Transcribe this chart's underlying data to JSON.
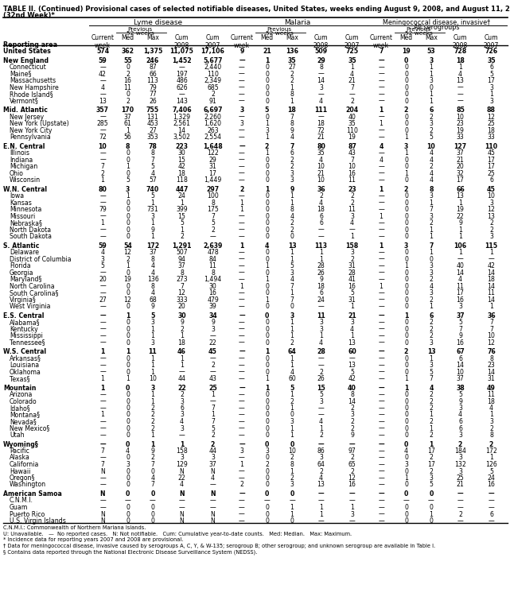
{
  "title_line1": "TABLE II. (Continued) Provisional cases of selected notifiable diseases, United States, weeks ending August 9, 2008, and August 11, 2007",
  "title_line2": "(32nd Week)*",
  "rows": [
    [
      "United States",
      "574",
      "362",
      "1,375",
      "11,075",
      "17,106",
      "9",
      "21",
      "136",
      "509",
      "725",
      "7",
      "19",
      "53",
      "728",
      "726"
    ],
    [
      "New England",
      "59",
      "55",
      "246",
      "1,452",
      "5,677",
      "—",
      "1",
      "35",
      "29",
      "35",
      "—",
      "0",
      "3",
      "18",
      "35"
    ],
    [
      "Connecticut",
      "—",
      "0",
      "87",
      "—",
      "2,440",
      "—",
      "0",
      "27",
      "8",
      "1",
      "—",
      "0",
      "1",
      "1",
      "6"
    ],
    [
      "Maine§",
      "42",
      "2",
      "66",
      "197",
      "110",
      "—",
      "0",
      "2",
      "—",
      "4",
      "—",
      "0",
      "1",
      "4",
      "5"
    ],
    [
      "Massachusetts",
      "—",
      "16",
      "113",
      "486",
      "2,349",
      "—",
      "0",
      "2",
      "14",
      "21",
      "—",
      "0",
      "3",
      "13",
      "17"
    ],
    [
      "New Hampshire",
      "4",
      "11",
      "79",
      "626",
      "685",
      "—",
      "0",
      "1",
      "3",
      "7",
      "—",
      "0",
      "0",
      "—",
      "3"
    ],
    [
      "Rhode Island§",
      "—",
      "0",
      "77",
      "—",
      "2",
      "—",
      "0",
      "8",
      "—",
      "—",
      "—",
      "0",
      "1",
      "—",
      "1"
    ],
    [
      "Vermont§",
      "13",
      "2",
      "26",
      "143",
      "91",
      "—",
      "0",
      "1",
      "4",
      "2",
      "—",
      "0",
      "1",
      "—",
      "3"
    ],
    [
      "Mid. Atlantic",
      "357",
      "170",
      "755",
      "7,406",
      "6,697",
      "3",
      "5",
      "18",
      "111",
      "204",
      "1",
      "2",
      "6",
      "85",
      "88"
    ],
    [
      "New Jersey",
      "—",
      "37",
      "131",
      "1,329",
      "2,260",
      "—",
      "0",
      "7",
      "—",
      "40",
      "—",
      "0",
      "2",
      "10",
      "12"
    ],
    [
      "New York (Upstate)",
      "285",
      "61",
      "453",
      "2,561",
      "1,620",
      "3",
      "1",
      "8",
      "18",
      "35",
      "1",
      "0",
      "3",
      "23",
      "25"
    ],
    [
      "New York City",
      "—",
      "1",
      "27",
      "14",
      "263",
      "—",
      "3",
      "9",
      "72",
      "110",
      "—",
      "0",
      "2",
      "19",
      "18"
    ],
    [
      "Pennsylvania",
      "72",
      "56",
      "353",
      "3,502",
      "2,554",
      "—",
      "1",
      "4",
      "21",
      "19",
      "—",
      "1",
      "5",
      "33",
      "33"
    ],
    [
      "E.N. Central",
      "10",
      "8",
      "78",
      "223",
      "1,648",
      "—",
      "2",
      "7",
      "80",
      "87",
      "4",
      "3",
      "10",
      "127",
      "110"
    ],
    [
      "Illinois",
      "—",
      "0",
      "8",
      "30",
      "122",
      "—",
      "1",
      "6",
      "35",
      "43",
      "—",
      "1",
      "4",
      "37",
      "45"
    ],
    [
      "Indiana",
      "—",
      "0",
      "7",
      "15",
      "29",
      "—",
      "0",
      "2",
      "4",
      "7",
      "4",
      "0",
      "4",
      "21",
      "17"
    ],
    [
      "Michigan",
      "7",
      "1",
      "5",
      "42",
      "31",
      "—",
      "0",
      "2",
      "10",
      "10",
      "—",
      "0",
      "2",
      "20",
      "17"
    ],
    [
      "Ohio",
      "2",
      "0",
      "4",
      "18",
      "17",
      "—",
      "0",
      "3",
      "21",
      "16",
      "—",
      "1",
      "4",
      "32",
      "25"
    ],
    [
      "Wisconsin",
      "1",
      "5",
      "57",
      "118",
      "1,449",
      "—",
      "0",
      "3",
      "10",
      "11",
      "—",
      "0",
      "4",
      "17",
      "6"
    ],
    [
      "W.N. Central",
      "80",
      "3",
      "740",
      "447",
      "297",
      "2",
      "1",
      "9",
      "36",
      "23",
      "1",
      "2",
      "8",
      "66",
      "45"
    ],
    [
      "Iowa",
      "—",
      "1",
      "5",
      "24",
      "100",
      "—",
      "0",
      "1",
      "2",
      "2",
      "—",
      "0",
      "3",
      "13",
      "10"
    ],
    [
      "Kansas",
      "—",
      "0",
      "1",
      "1",
      "8",
      "1",
      "0",
      "1",
      "4",
      "2",
      "—",
      "0",
      "1",
      "1",
      "3"
    ],
    [
      "Minnesota",
      "79",
      "0",
      "731",
      "399",
      "175",
      "1",
      "0",
      "8",
      "18",
      "11",
      "—",
      "0",
      "7",
      "19",
      "12"
    ],
    [
      "Missouri",
      "—",
      "0",
      "3",
      "15",
      "7",
      "—",
      "0",
      "4",
      "6",
      "3",
      "1",
      "0",
      "3",
      "22",
      "13"
    ],
    [
      "Nebraska§",
      "1",
      "0",
      "1",
      "5",
      "5",
      "—",
      "0",
      "2",
      "6",
      "4",
      "—",
      "0",
      "2",
      "9",
      "2"
    ],
    [
      "North Dakota",
      "—",
      "0",
      "9",
      "1",
      "2",
      "—",
      "0",
      "2",
      "—",
      "—",
      "—",
      "0",
      "1",
      "1",
      "2"
    ],
    [
      "South Dakota",
      "—",
      "0",
      "1",
      "2",
      "—",
      "—",
      "0",
      "0",
      "—",
      "1",
      "—",
      "0",
      "1",
      "1",
      "3"
    ],
    [
      "S. Atlantic",
      "59",
      "54",
      "172",
      "1,291",
      "2,639",
      "1",
      "4",
      "13",
      "113",
      "158",
      "1",
      "3",
      "7",
      "106",
      "115"
    ],
    [
      "Delaware",
      "4",
      "12",
      "37",
      "507",
      "478",
      "—",
      "0",
      "1",
      "1",
      "3",
      "—",
      "0",
      "1",
      "1",
      "1"
    ],
    [
      "District of Columbia",
      "3",
      "2",
      "8",
      "94",
      "84",
      "—",
      "0",
      "1",
      "1",
      "2",
      "—",
      "0",
      "0",
      "—",
      "—"
    ],
    [
      "Florida",
      "5",
      "1",
      "4",
      "37",
      "11",
      "—",
      "1",
      "5",
      "28",
      "31",
      "—",
      "1",
      "3",
      "40",
      "42"
    ],
    [
      "Georgia",
      "—",
      "0",
      "4",
      "8",
      "8",
      "—",
      "0",
      "3",
      "26",
      "28",
      "—",
      "0",
      "3",
      "14",
      "14"
    ],
    [
      "Maryland§",
      "20",
      "19",
      "136",
      "273",
      "1,494",
      "—",
      "1",
      "4",
      "9",
      "41",
      "—",
      "0",
      "2",
      "4",
      "18"
    ],
    [
      "North Carolina",
      "—",
      "0",
      "8",
      "7",
      "30",
      "1",
      "0",
      "7",
      "18",
      "16",
      "1",
      "0",
      "4",
      "11",
      "14"
    ],
    [
      "South Carolina§",
      "—",
      "0",
      "4",
      "12",
      "16",
      "—",
      "0",
      "1",
      "6",
      "5",
      "—",
      "0",
      "3",
      "17",
      "11"
    ],
    [
      "Virginia§",
      "27",
      "12",
      "68",
      "333",
      "479",
      "—",
      "1",
      "7",
      "24",
      "31",
      "—",
      "0",
      "2",
      "16",
      "14"
    ],
    [
      "West Virginia",
      "—",
      "0",
      "9",
      "20",
      "39",
      "—",
      "0",
      "0",
      "—",
      "1",
      "—",
      "0",
      "1",
      "3",
      "1"
    ],
    [
      "E.S. Central",
      "—",
      "1",
      "5",
      "30",
      "34",
      "—",
      "0",
      "3",
      "11",
      "21",
      "—",
      "1",
      "6",
      "37",
      "36"
    ],
    [
      "Alabama§",
      "—",
      "0",
      "3",
      "9",
      "9",
      "—",
      "0",
      "1",
      "3",
      "3",
      "—",
      "0",
      "2",
      "5",
      "7"
    ],
    [
      "Kentucky",
      "—",
      "0",
      "1",
      "2",
      "3",
      "—",
      "0",
      "1",
      "3",
      "4",
      "—",
      "0",
      "2",
      "7",
      "7"
    ],
    [
      "Mississippi",
      "—",
      "0",
      "1",
      "1",
      "—",
      "—",
      "0",
      "1",
      "1",
      "1",
      "—",
      "0",
      "2",
      "9",
      "10"
    ],
    [
      "Tennessee§",
      "—",
      "0",
      "3",
      "18",
      "22",
      "—",
      "0",
      "2",
      "4",
      "13",
      "—",
      "0",
      "3",
      "16",
      "12"
    ],
    [
      "W.S. Central",
      "1",
      "1",
      "11",
      "46",
      "45",
      "—",
      "1",
      "64",
      "28",
      "60",
      "—",
      "2",
      "13",
      "67",
      "76"
    ],
    [
      "Arkansas§",
      "—",
      "0",
      "1",
      "1",
      "—",
      "—",
      "0",
      "1",
      "—",
      "—",
      "—",
      "0",
      "1",
      "6",
      "8"
    ],
    [
      "Louisiana",
      "—",
      "0",
      "1",
      "1",
      "2",
      "—",
      "0",
      "1",
      "—",
      "13",
      "—",
      "0",
      "3",
      "14",
      "23"
    ],
    [
      "Oklahoma",
      "—",
      "0",
      "1",
      "—",
      "—",
      "—",
      "0",
      "4",
      "2",
      "5",
      "—",
      "0",
      "5",
      "10",
      "14"
    ],
    [
      "Texas§",
      "1",
      "1",
      "10",
      "44",
      "43",
      "—",
      "1",
      "60",
      "26",
      "42",
      "—",
      "1",
      "7",
      "37",
      "31"
    ],
    [
      "Mountain",
      "1",
      "0",
      "3",
      "22",
      "25",
      "—",
      "1",
      "5",
      "15",
      "40",
      "—",
      "1",
      "4",
      "38",
      "49"
    ],
    [
      "Arizona",
      "—",
      "0",
      "1",
      "2",
      "1",
      "—",
      "0",
      "1",
      "5",
      "8",
      "—",
      "0",
      "2",
      "5",
      "11"
    ],
    [
      "Colorado",
      "—",
      "0",
      "1",
      "3",
      "—",
      "—",
      "0",
      "2",
      "3",
      "14",
      "—",
      "0",
      "2",
      "9",
      "18"
    ],
    [
      "Idaho§",
      "—",
      "0",
      "2",
      "6",
      "7",
      "—",
      "0",
      "1",
      "—",
      "2",
      "—",
      "0",
      "2",
      "3",
      "4"
    ],
    [
      "Montana§",
      "1",
      "0",
      "2",
      "3",
      "1",
      "—",
      "0",
      "0",
      "—",
      "3",
      "—",
      "0",
      "1",
      "4",
      "1"
    ],
    [
      "Nevada§",
      "—",
      "0",
      "2",
      "4",
      "7",
      "—",
      "0",
      "3",
      "4",
      "2",
      "—",
      "0",
      "2",
      "6",
      "3"
    ],
    [
      "New Mexico§",
      "—",
      "0",
      "2",
      "3",
      "5",
      "—",
      "0",
      "1",
      "1",
      "2",
      "—",
      "0",
      "1",
      "6",
      "2"
    ],
    [
      "Utah",
      "—",
      "0",
      "1",
      "—",
      "2",
      "—",
      "0",
      "1",
      "2",
      "9",
      "—",
      "0",
      "2",
      "3",
      "8"
    ],
    [
      "Wyoming§",
      "—",
      "0",
      "1",
      "1",
      "2",
      "—",
      "0",
      "0",
      "—",
      "—",
      "—",
      "0",
      "1",
      "2",
      "2"
    ],
    [
      "Pacific",
      "7",
      "4",
      "9",
      "158",
      "44",
      "3",
      "3",
      "10",
      "86",
      "97",
      "—",
      "4",
      "17",
      "184",
      "172"
    ],
    [
      "Alaska",
      "—",
      "0",
      "2",
      "3",
      "3",
      "—",
      "0",
      "2",
      "3",
      "2",
      "—",
      "0",
      "2",
      "3",
      "1"
    ],
    [
      "California",
      "7",
      "3",
      "7",
      "129",
      "37",
      "1",
      "2",
      "8",
      "64",
      "65",
      "—",
      "3",
      "17",
      "132",
      "126"
    ],
    [
      "Hawaii",
      "N",
      "0",
      "0",
      "N",
      "N",
      "—",
      "0",
      "1",
      "2",
      "2",
      "—",
      "0",
      "2",
      "3",
      "5"
    ],
    [
      "Oregon§",
      "—",
      "0",
      "4",
      "22",
      "4",
      "—",
      "0",
      "2",
      "4",
      "12",
      "—",
      "1",
      "3",
      "25",
      "24"
    ],
    [
      "Washington",
      "—",
      "0",
      "7",
      "4",
      "—",
      "2",
      "0",
      "3",
      "13",
      "16",
      "—",
      "0",
      "5",
      "21",
      "16"
    ],
    [
      "American Samoa",
      "N",
      "0",
      "0",
      "N",
      "N",
      "—",
      "0",
      "0",
      "—",
      "—",
      "—",
      "0",
      "0",
      "—",
      "—"
    ],
    [
      "C.N.M.I.",
      "—",
      "—",
      "—",
      "—",
      "—",
      "—",
      "—",
      "—",
      "—",
      "—",
      "—",
      "—",
      "—",
      "—",
      "—"
    ],
    [
      "Guam",
      "—",
      "0",
      "0",
      "—",
      "—",
      "—",
      "0",
      "1",
      "1",
      "1",
      "—",
      "0",
      "0",
      "—",
      "—"
    ],
    [
      "Puerto Rico",
      "N",
      "0",
      "0",
      "N",
      "N",
      "—",
      "0",
      "1",
      "1",
      "3",
      "—",
      "0",
      "1",
      "2",
      "6"
    ],
    [
      "U.S. Virgin Islands",
      "N",
      "0",
      "0",
      "N",
      "N",
      "—",
      "0",
      "0",
      "—",
      "—",
      "—",
      "0",
      "0",
      "—",
      "—"
    ]
  ],
  "section_rows": [
    0,
    1,
    8,
    13,
    19,
    27,
    37,
    42,
    47,
    55,
    62
  ],
  "footnotes": [
    "C.N.M.I.: Commonwealth of Northern Mariana Islands.",
    "U: Unavailable.   —  No reported cases.   N: Not notifiable.   Cum: Cumulative year-to-date counts.   Med: Median.   Max: Maximum.",
    "* Incidence data for reporting years 2007 and 2008 are provisional.",
    "† Data for meningococcal disease, invasive caused by serogroups A, C, Y, & W-135; serogroup B; other serogroup; and unknown serogroup are available in Table I.",
    "§ Contains data reported through the National Electronic Disease Surveillance System (NEDSS)."
  ]
}
